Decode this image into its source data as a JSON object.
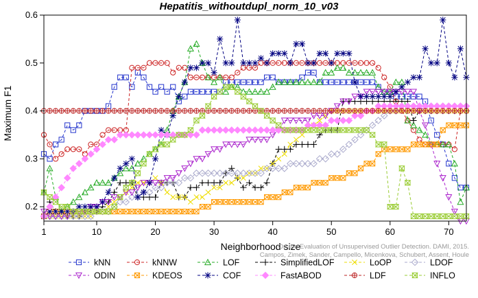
{
  "chart_data": {
    "type": "line",
    "title": "Hepatitis_withoutdupl_norm_10_v03",
    "xlabel": "Neighborhood size",
    "ylabel": "Maximum F1",
    "xlim": [
      1,
      73
    ],
    "ylim": [
      0.17,
      0.6
    ],
    "xticks": [
      1,
      10,
      20,
      30,
      40,
      50,
      60,
      70
    ],
    "yticks": [
      0.2,
      0.3,
      0.4,
      0.5,
      0.6
    ],
    "x_start": 1,
    "x_end": 73,
    "legend_position": "bottom",
    "source_text_line1": "Campos, Zimek, Sander, Campello, Micenkova, Schubert, Assent, Houle",
    "source_text_line2": "On the Evaluation of Unsupervised Outlier Detection. DAMI, 2015.",
    "series": [
      {
        "name": "kNN",
        "color": "#2233cc",
        "marker": "square",
        "values": [
          0.31,
          0.3,
          0.33,
          0.34,
          0.37,
          0.36,
          0.37,
          0.4,
          0.4,
          0.4,
          0.4,
          0.41,
          0.45,
          0.47,
          0.47,
          0.45,
          0.48,
          0.47,
          0.45,
          0.44,
          0.45,
          0.44,
          0.45,
          0.42,
          0.43,
          0.44,
          0.44,
          0.44,
          0.44,
          0.44,
          0.44,
          0.46,
          0.46,
          0.46,
          0.46,
          0.46,
          0.46,
          0.46,
          0.47,
          0.47,
          0.46,
          0.46,
          0.46,
          0.46,
          0.47,
          0.48,
          0.48,
          0.46,
          0.46,
          0.46,
          0.46,
          0.46,
          0.46,
          0.46,
          0.46,
          0.46,
          0.46,
          0.45,
          0.44,
          0.44,
          0.43,
          0.43,
          0.43,
          0.43,
          0.43,
          0.42,
          0.38,
          0.35,
          0.33,
          0.29,
          0.26,
          0.24,
          0.24
        ]
      },
      {
        "name": "kNNW",
        "color": "#cc2222",
        "marker": "circle",
        "values": [
          0.35,
          0.33,
          0.3,
          0.31,
          0.32,
          0.32,
          0.32,
          0.31,
          0.33,
          0.33,
          0.35,
          0.36,
          0.36,
          0.36,
          0.36,
          0.49,
          0.49,
          0.49,
          0.5,
          0.5,
          0.5,
          0.5,
          0.48,
          0.49,
          0.49,
          0.47,
          0.47,
          0.47,
          0.47,
          0.47,
          0.47,
          0.47,
          0.47,
          0.48,
          0.49,
          0.49,
          0.49,
          0.5,
          0.5,
          0.5,
          0.5,
          0.5,
          0.5,
          0.5,
          0.5,
          0.5,
          0.5,
          0.5,
          0.5,
          0.5,
          0.5,
          0.5,
          0.5,
          0.5,
          0.5,
          0.5,
          0.5,
          0.49,
          0.47,
          0.45,
          0.42,
          0.4,
          0.38,
          0.36,
          0.34,
          0.33,
          0.33,
          0.33,
          0.33,
          0.33,
          0.32,
          0.4,
          0.4
        ]
      },
      {
        "name": "LOF",
        "color": "#22aa22",
        "marker": "triangle-up",
        "values": [
          0.23,
          0.28,
          0.22,
          0.19,
          0.2,
          0.21,
          0.22,
          0.23,
          0.24,
          0.25,
          0.25,
          0.25,
          0.26,
          0.27,
          0.28,
          0.28,
          0.29,
          0.3,
          0.31,
          0.32,
          0.33,
          0.36,
          0.4,
          0.43,
          0.46,
          0.53,
          0.54,
          0.5,
          0.47,
          0.46,
          0.47,
          0.44,
          0.45,
          0.45,
          0.44,
          0.44,
          0.44,
          0.44,
          0.44,
          0.45,
          0.46,
          0.46,
          0.46,
          0.46,
          0.46,
          0.46,
          0.46,
          0.46,
          0.48,
          0.48,
          0.49,
          0.49,
          0.48,
          0.48,
          0.48,
          0.48,
          0.48,
          0.45,
          0.44,
          0.44,
          0.46,
          0.46,
          0.38,
          0.37,
          0.36,
          0.35,
          0.33,
          0.33,
          0.33,
          0.33,
          0.29,
          0.21,
          0.24
        ]
      },
      {
        "name": "SimplifiedLOF",
        "color": "#000000",
        "marker": "plus",
        "values": [
          0.18,
          0.21,
          0.19,
          0.19,
          0.18,
          0.18,
          0.18,
          0.19,
          0.19,
          0.19,
          0.2,
          0.21,
          0.23,
          0.25,
          0.25,
          0.25,
          0.22,
          0.22,
          0.22,
          0.22,
          0.25,
          0.25,
          0.25,
          0.22,
          0.22,
          0.24,
          0.24,
          0.25,
          0.25,
          0.25,
          0.25,
          0.27,
          0.28,
          0.26,
          0.24,
          0.25,
          0.24,
          0.24,
          0.25,
          0.29,
          0.32,
          0.32,
          0.32,
          0.33,
          0.33,
          0.33,
          0.33,
          0.35,
          0.36,
          0.36,
          0.36,
          0.42,
          0.42,
          0.42,
          0.42,
          0.42,
          0.42,
          0.42,
          0.42,
          0.42,
          0.42,
          0.42,
          0.42,
          0.38,
          0.4,
          0.4,
          0.4,
          0.4,
          0.4,
          0.4,
          0.4,
          0.4,
          0.4
        ]
      },
      {
        "name": "LoOP",
        "color": "#eedd00",
        "marker": "x",
        "values": [
          0.18,
          0.18,
          0.18,
          0.18,
          0.18,
          0.18,
          0.18,
          0.18,
          0.18,
          0.19,
          0.19,
          0.2,
          0.21,
          0.22,
          0.23,
          0.24,
          0.25,
          0.25,
          0.25,
          0.26,
          0.25,
          0.23,
          0.22,
          0.22,
          0.22,
          0.21,
          0.22,
          0.22,
          0.23,
          0.24,
          0.24,
          0.25,
          0.25,
          0.26,
          0.26,
          0.27,
          0.27,
          0.28,
          0.28,
          0.29,
          0.3,
          0.31,
          0.33,
          0.34,
          0.35,
          0.36,
          0.37,
          0.38,
          0.39,
          0.4,
          0.4,
          0.4,
          0.4,
          0.4,
          0.4,
          0.4,
          0.4,
          0.4,
          0.4,
          0.4,
          0.4,
          0.4,
          0.4,
          0.4,
          0.4,
          0.4,
          0.4,
          0.4,
          0.4,
          0.4,
          0.4,
          0.4,
          0.4
        ]
      },
      {
        "name": "LDOF",
        "color": "#aaaacc",
        "marker": "diamond",
        "values": [
          0.18,
          0.18,
          0.18,
          0.18,
          0.18,
          0.18,
          0.18,
          0.18,
          0.18,
          0.19,
          0.19,
          0.19,
          0.2,
          0.21,
          0.21,
          0.22,
          0.22,
          0.23,
          0.23,
          0.24,
          0.24,
          0.25,
          0.25,
          0.25,
          0.26,
          0.26,
          0.27,
          0.27,
          0.27,
          0.27,
          0.27,
          0.27,
          0.27,
          0.27,
          0.27,
          0.27,
          0.27,
          0.27,
          0.28,
          0.28,
          0.28,
          0.28,
          0.29,
          0.29,
          0.29,
          0.29,
          0.29,
          0.3,
          0.3,
          0.31,
          0.31,
          0.32,
          0.33,
          0.34,
          0.35,
          0.36,
          0.37,
          0.38,
          0.39,
          0.4,
          0.4,
          0.41,
          0.41,
          0.41,
          0.41,
          0.41,
          0.41,
          0.41,
          0.41,
          0.41,
          0.41,
          0.41,
          0.41
        ]
      },
      {
        "name": "ODIN",
        "color": "#aa22cc",
        "marker": "triangle-down",
        "values": [
          0.19,
          0.18,
          0.18,
          0.18,
          0.18,
          0.19,
          0.19,
          0.19,
          0.2,
          0.2,
          0.21,
          0.21,
          0.22,
          0.22,
          0.23,
          0.23,
          0.24,
          0.25,
          0.25,
          0.25,
          0.25,
          0.26,
          0.26,
          0.27,
          0.28,
          0.29,
          0.3,
          0.3,
          0.31,
          0.32,
          0.32,
          0.33,
          0.33,
          0.33,
          0.33,
          0.34,
          0.34,
          0.34,
          0.34,
          0.35,
          0.36,
          0.38,
          0.38,
          0.38,
          0.38,
          0.38,
          0.39,
          0.39,
          0.39,
          0.4,
          0.41,
          0.42,
          0.42,
          0.43,
          0.43,
          0.44,
          0.44,
          0.44,
          0.44,
          0.44,
          0.44,
          0.44,
          0.44,
          0.44,
          0.4,
          0.37,
          0.33,
          0.29,
          0.26,
          0.22,
          0.19,
          0.17,
          0.17
        ]
      },
      {
        "name": "KDEOS",
        "color": "#ff9900",
        "marker": "square-x",
        "values": [
          0.18,
          0.19,
          0.19,
          0.19,
          0.19,
          0.19,
          0.19,
          0.19,
          0.19,
          0.19,
          0.19,
          0.19,
          0.19,
          0.19,
          0.19,
          0.19,
          0.19,
          0.19,
          0.19,
          0.19,
          0.19,
          0.19,
          0.19,
          0.19,
          0.19,
          0.19,
          0.19,
          0.2,
          0.2,
          0.21,
          0.21,
          0.21,
          0.21,
          0.21,
          0.21,
          0.21,
          0.21,
          0.21,
          0.22,
          0.22,
          0.22,
          0.23,
          0.23,
          0.24,
          0.24,
          0.24,
          0.25,
          0.25,
          0.25,
          0.26,
          0.26,
          0.26,
          0.27,
          0.27,
          0.28,
          0.29,
          0.29,
          0.31,
          0.32,
          0.32,
          0.32,
          0.32,
          0.32,
          0.33,
          0.33,
          0.33,
          0.33,
          0.33,
          0.36,
          0.37,
          0.37,
          0.37,
          0.37
        ]
      },
      {
        "name": "COF",
        "color": "#000080",
        "marker": "asterisk",
        "values": [
          0.18,
          0.19,
          0.19,
          0.19,
          0.19,
          0.19,
          0.2,
          0.2,
          0.2,
          0.2,
          0.21,
          0.23,
          0.26,
          0.28,
          0.29,
          0.3,
          0.22,
          0.23,
          0.25,
          0.3,
          0.36,
          0.35,
          0.39,
          0.43,
          0.46,
          0.49,
          0.49,
          0.5,
          0.5,
          0.48,
          0.55,
          0.5,
          0.5,
          0.59,
          0.5,
          0.5,
          0.5,
          0.51,
          0.5,
          0.52,
          0.52,
          0.52,
          0.5,
          0.54,
          0.54,
          0.5,
          0.5,
          0.52,
          0.52,
          0.5,
          0.52,
          0.52,
          0.52,
          0.46,
          0.43,
          0.43,
          0.43,
          0.43,
          0.43,
          0.43,
          0.44,
          0.45,
          0.46,
          0.47,
          0.47,
          0.53,
          0.5,
          0.5,
          0.59,
          0.5,
          0.47,
          0.53,
          0.47
        ]
      },
      {
        "name": "FastABOD",
        "color": "#ff88ff",
        "marker": "diamond-filled",
        "values": [
          0.18,
          0.2,
          0.22,
          0.24,
          0.26,
          0.28,
          0.29,
          0.3,
          0.31,
          0.32,
          0.33,
          0.34,
          0.34,
          0.35,
          0.35,
          0.35,
          0.35,
          0.35,
          0.35,
          0.35,
          0.35,
          0.35,
          0.35,
          0.35,
          0.35,
          0.35,
          0.35,
          0.36,
          0.36,
          0.36,
          0.36,
          0.36,
          0.36,
          0.36,
          0.36,
          0.36,
          0.36,
          0.36,
          0.36,
          0.36,
          0.36,
          0.36,
          0.36,
          0.36,
          0.36,
          0.37,
          0.37,
          0.37,
          0.37,
          0.38,
          0.38,
          0.38,
          0.38,
          0.39,
          0.39,
          0.4,
          0.4,
          0.41,
          0.41,
          0.41,
          0.41,
          0.41,
          0.41,
          0.41,
          0.41,
          0.41,
          0.41,
          0.41,
          0.41,
          0.41,
          0.41,
          0.41,
          0.41
        ]
      },
      {
        "name": "LDF",
        "color": "#bb2222",
        "marker": "circle-plus",
        "values": [
          0.4,
          0.4,
          0.4,
          0.4,
          0.4,
          0.4,
          0.4,
          0.4,
          0.4,
          0.4,
          0.4,
          0.4,
          0.4,
          0.4,
          0.4,
          0.4,
          0.4,
          0.4,
          0.4,
          0.4,
          0.4,
          0.4,
          0.4,
          0.4,
          0.4,
          0.4,
          0.4,
          0.4,
          0.4,
          0.4,
          0.4,
          0.4,
          0.4,
          0.4,
          0.4,
          0.4,
          0.4,
          0.4,
          0.4,
          0.4,
          0.4,
          0.4,
          0.4,
          0.4,
          0.4,
          0.4,
          0.4,
          0.4,
          0.4,
          0.4,
          0.4,
          0.4,
          0.4,
          0.4,
          0.4,
          0.4,
          0.4,
          0.4,
          0.4,
          0.4,
          0.4,
          0.4,
          0.4,
          0.4,
          0.4,
          0.4,
          0.4,
          0.4,
          0.4,
          0.4,
          0.4,
          0.4,
          0.4
        ]
      },
      {
        "name": "INFLO",
        "color": "#99cc33",
        "marker": "hourglass",
        "values": [
          0.23,
          0.22,
          0.21,
          0.2,
          0.2,
          0.19,
          0.19,
          0.19,
          0.19,
          0.19,
          0.19,
          0.19,
          0.2,
          0.22,
          0.24,
          0.25,
          0.27,
          0.29,
          0.31,
          0.32,
          0.33,
          0.33,
          0.34,
          0.35,
          0.35,
          0.36,
          0.38,
          0.39,
          0.41,
          0.43,
          0.44,
          0.45,
          0.45,
          0.44,
          0.43,
          0.42,
          0.41,
          0.4,
          0.39,
          0.38,
          0.37,
          0.36,
          0.36,
          0.36,
          0.36,
          0.36,
          0.36,
          0.36,
          0.36,
          0.36,
          0.36,
          0.36,
          0.36,
          0.36,
          0.36,
          0.36,
          0.35,
          0.33,
          0.33,
          0.2,
          0.2,
          0.28,
          0.25,
          0.18,
          0.18,
          0.18,
          0.18,
          0.18,
          0.18,
          0.18,
          0.18,
          0.18,
          0.18
        ]
      }
    ]
  }
}
